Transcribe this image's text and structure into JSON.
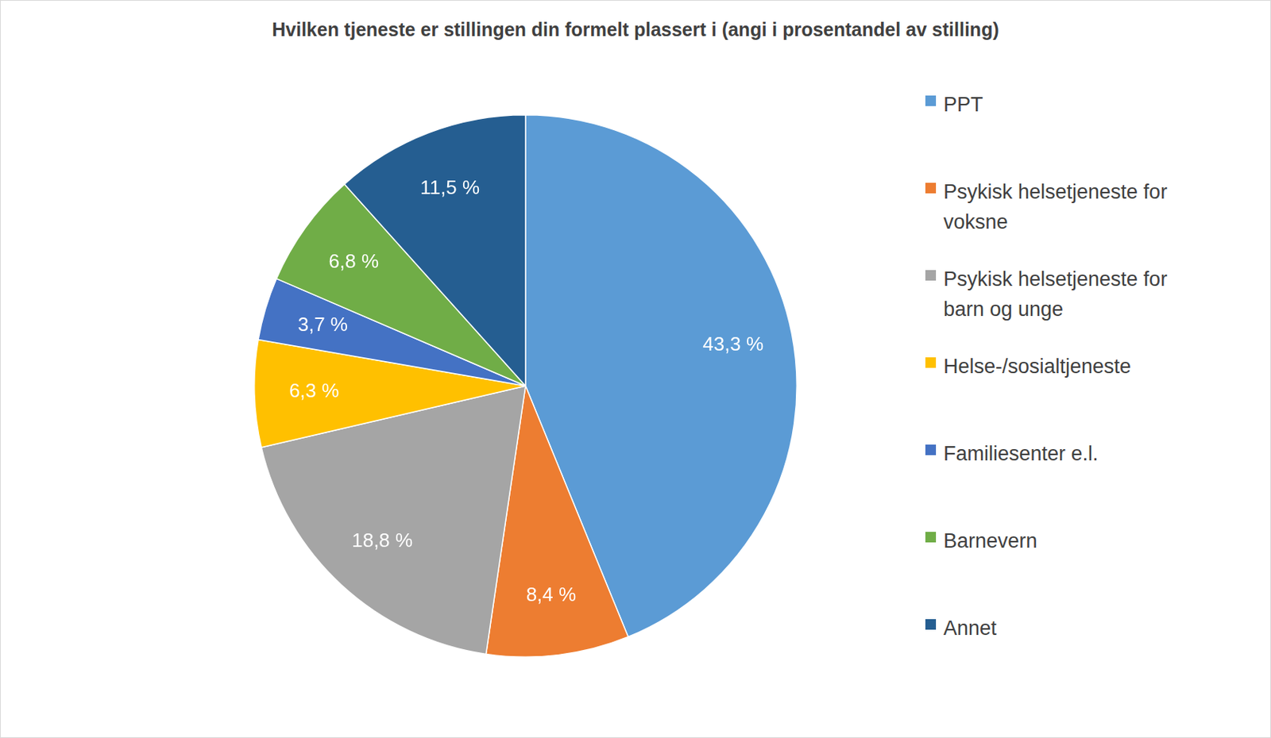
{
  "chart_data": {
    "type": "pie",
    "title": "Hvilken tjeneste er stillingen din formelt plassert i (angi i prosentandel av stilling)",
    "categories": [
      "PPT",
      "Psykisk helsetjeneste for voksne",
      "Psykisk helsetjeneste for barn og unge",
      "Helse-/sosialtjeneste",
      "Familiesenter e.l.",
      "Barnevern",
      "Annet"
    ],
    "values": [
      43.3,
      8.4,
      18.8,
      6.3,
      3.7,
      6.8,
      11.5
    ],
    "value_labels": [
      "43,3 %",
      "8,4 %",
      "18,8 %",
      "6,3 %",
      "3,7 %",
      "6,8 %",
      "11,5 %"
    ],
    "colors": [
      "#5b9bd5",
      "#ed7d31",
      "#a5a5a5",
      "#ffc000",
      "#4472c4",
      "#70ad47",
      "#255e91"
    ],
    "data_labels": true,
    "legend": "right"
  }
}
